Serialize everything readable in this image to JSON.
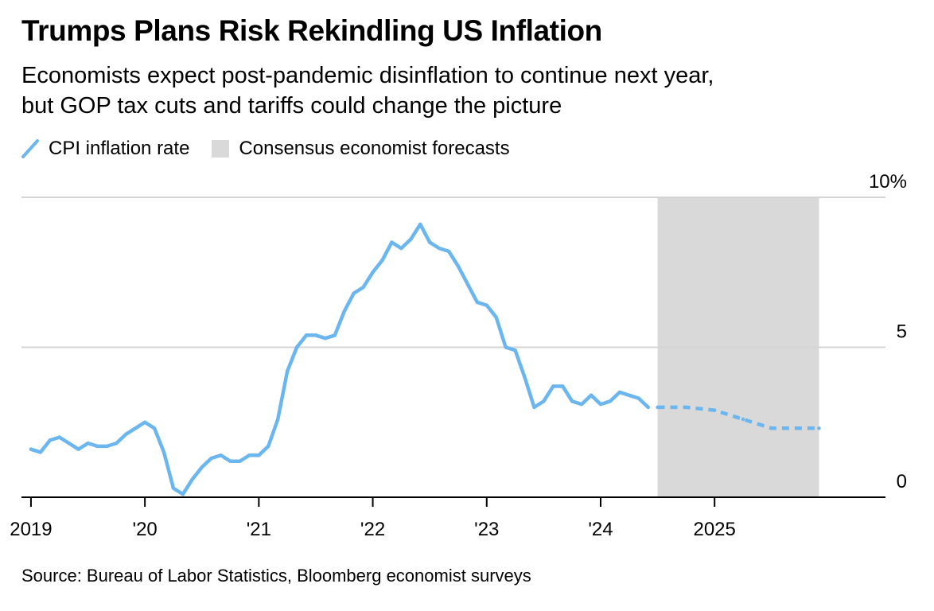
{
  "title": "Trumps Plans Risk Rekindling US Inflation",
  "subtitle_lines": [
    "Economists expect post-pandemic disinflation to continue next year,",
    "but GOP tax cuts and tariffs could change the picture"
  ],
  "legend": {
    "cpi_label": "CPI inflation rate",
    "forecast_label": "Consensus economist forecasts"
  },
  "source": "Source: Bureau of Labor Statistics, Bloomberg economist surveys",
  "colors": {
    "cpi_line": "#6bb6ef",
    "forecast_band": "#d9d9d9",
    "gridline": "#d4d4d4",
    "axis": "#000000"
  },
  "chart_data": {
    "type": "line",
    "title": "Trumps Plans Risk Rekindling US Inflation",
    "subtitle": "Economists expect post-pandemic disinflation to continue next year, but GOP tax cuts and tariffs could change the picture",
    "xlabel": "",
    "ylabel": "",
    "x_tick_labels": [
      {
        "date": "2019-01",
        "label": "2019"
      },
      {
        "date": "2020-01",
        "label": "'20"
      },
      {
        "date": "2021-01",
        "label": "'21"
      },
      {
        "date": "2022-01",
        "label": "'22"
      },
      {
        "date": "2023-01",
        "label": "'23"
      },
      {
        "date": "2024-01",
        "label": "'24"
      },
      {
        "date": "2025-01",
        "label": "2025"
      }
    ],
    "y_tick_labels": [
      {
        "value": 0,
        "label": "0"
      },
      {
        "value": 5,
        "label": "5"
      },
      {
        "value": 10,
        "label": "10%"
      }
    ],
    "x_range": [
      "2018-12",
      "2026-07"
    ],
    "ylim": [
      0,
      10
    ],
    "grid": "horizontal",
    "legend_position": "top-left",
    "y_axis_side": "right",
    "forecast_band": {
      "start": "2024-07",
      "end": "2025-12"
    },
    "series": [
      {
        "name": "CPI inflation rate",
        "style": "solid",
        "points": [
          {
            "x": "2019-01",
            "y": 1.6
          },
          {
            "x": "2019-02",
            "y": 1.5
          },
          {
            "x": "2019-03",
            "y": 1.9
          },
          {
            "x": "2019-04",
            "y": 2.0
          },
          {
            "x": "2019-05",
            "y": 1.8
          },
          {
            "x": "2019-06",
            "y": 1.6
          },
          {
            "x": "2019-07",
            "y": 1.8
          },
          {
            "x": "2019-08",
            "y": 1.7
          },
          {
            "x": "2019-09",
            "y": 1.7
          },
          {
            "x": "2019-10",
            "y": 1.8
          },
          {
            "x": "2019-11",
            "y": 2.1
          },
          {
            "x": "2019-12",
            "y": 2.3
          },
          {
            "x": "2020-01",
            "y": 2.5
          },
          {
            "x": "2020-02",
            "y": 2.3
          },
          {
            "x": "2020-03",
            "y": 1.5
          },
          {
            "x": "2020-04",
            "y": 0.3
          },
          {
            "x": "2020-05",
            "y": 0.1
          },
          {
            "x": "2020-06",
            "y": 0.6
          },
          {
            "x": "2020-07",
            "y": 1.0
          },
          {
            "x": "2020-08",
            "y": 1.3
          },
          {
            "x": "2020-09",
            "y": 1.4
          },
          {
            "x": "2020-10",
            "y": 1.2
          },
          {
            "x": "2020-11",
            "y": 1.2
          },
          {
            "x": "2020-12",
            "y": 1.4
          },
          {
            "x": "2021-01",
            "y": 1.4
          },
          {
            "x": "2021-02",
            "y": 1.7
          },
          {
            "x": "2021-03",
            "y": 2.6
          },
          {
            "x": "2021-04",
            "y": 4.2
          },
          {
            "x": "2021-05",
            "y": 5.0
          },
          {
            "x": "2021-06",
            "y": 5.4
          },
          {
            "x": "2021-07",
            "y": 5.4
          },
          {
            "x": "2021-08",
            "y": 5.3
          },
          {
            "x": "2021-09",
            "y": 5.4
          },
          {
            "x": "2021-10",
            "y": 6.2
          },
          {
            "x": "2021-11",
            "y": 6.8
          },
          {
            "x": "2021-12",
            "y": 7.0
          },
          {
            "x": "2022-01",
            "y": 7.5
          },
          {
            "x": "2022-02",
            "y": 7.9
          },
          {
            "x": "2022-03",
            "y": 8.5
          },
          {
            "x": "2022-04",
            "y": 8.3
          },
          {
            "x": "2022-05",
            "y": 8.6
          },
          {
            "x": "2022-06",
            "y": 9.1
          },
          {
            "x": "2022-07",
            "y": 8.5
          },
          {
            "x": "2022-08",
            "y": 8.3
          },
          {
            "x": "2022-09",
            "y": 8.2
          },
          {
            "x": "2022-10",
            "y": 7.7
          },
          {
            "x": "2022-11",
            "y": 7.1
          },
          {
            "x": "2022-12",
            "y": 6.5
          },
          {
            "x": "2023-01",
            "y": 6.4
          },
          {
            "x": "2023-02",
            "y": 6.0
          },
          {
            "x": "2023-03",
            "y": 5.0
          },
          {
            "x": "2023-04",
            "y": 4.9
          },
          {
            "x": "2023-05",
            "y": 4.0
          },
          {
            "x": "2023-06",
            "y": 3.0
          },
          {
            "x": "2023-07",
            "y": 3.2
          },
          {
            "x": "2023-08",
            "y": 3.7
          },
          {
            "x": "2023-09",
            "y": 3.7
          },
          {
            "x": "2023-10",
            "y": 3.2
          },
          {
            "x": "2023-11",
            "y": 3.1
          },
          {
            "x": "2023-12",
            "y": 3.4
          },
          {
            "x": "2024-01",
            "y": 3.1
          },
          {
            "x": "2024-02",
            "y": 3.2
          },
          {
            "x": "2024-03",
            "y": 3.5
          },
          {
            "x": "2024-04",
            "y": 3.4
          },
          {
            "x": "2024-05",
            "y": 3.3
          },
          {
            "x": "2024-06",
            "y": 3.0
          }
        ]
      },
      {
        "name": "Consensus economist forecasts",
        "style": "dashed",
        "points": [
          {
            "x": "2024-07",
            "y": 3.0
          },
          {
            "x": "2024-10",
            "y": 3.0
          },
          {
            "x": "2025-01",
            "y": 2.9
          },
          {
            "x": "2025-04",
            "y": 2.6
          },
          {
            "x": "2025-07",
            "y": 2.3
          },
          {
            "x": "2025-10",
            "y": 2.3
          },
          {
            "x": "2025-12",
            "y": 2.3
          }
        ]
      }
    ]
  }
}
